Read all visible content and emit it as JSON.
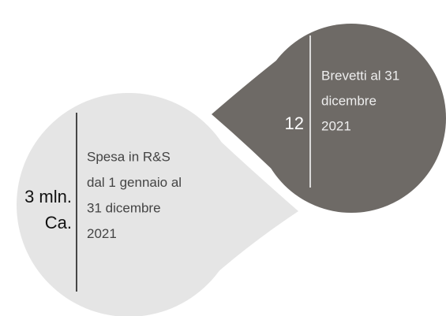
{
  "left_bubble": {
    "value_lines": [
      "3 mln.",
      "Ca."
    ],
    "description_lines": [
      "Spesa in R&S",
      "dal 1 gennaio al",
      "31 dicembre",
      "2021"
    ]
  },
  "right_bubble": {
    "value_lines": [
      "12"
    ],
    "description_lines": [
      "Brevetti al 31",
      "dicembre",
      "2021"
    ]
  }
}
